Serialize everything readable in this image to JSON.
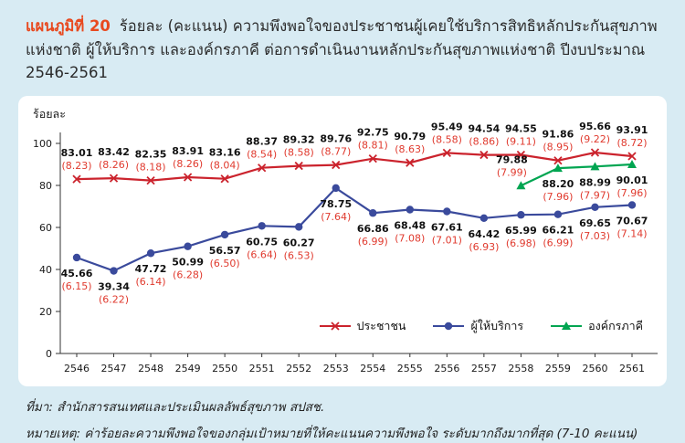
{
  "page": {
    "title_label": "แผนภูมิที่ 20",
    "title_text": "ร้อยละ (คะแนน) ความพึงพอใจของประชาชนผู้เคยใช้บริการสิทธิหลักประกันสุขภาพแห่งชาติ ผู้ให้บริการ และองค์กรภาคี ต่อการดำเนินงานหลักประกันสุขภาพแห่งชาติ ปีงบประมาณ 2546-2561",
    "source_line": "ที่มา: สำนักสารสนเทศและประเมินผลลัพธ์สุขภาพ สปสช.",
    "note_line": "หมายเหตุ: ค่าร้อยละความพึงพอใจของกลุ่มเป้าหมายที่ให้คะแนนความพึงพอใจ ระดับมากถึงมากที่สุด (7-10 คะแนน)"
  },
  "colors": {
    "background": "#d8ebf3",
    "card": "#ffffff",
    "title_accent": "#e8491f",
    "score_label": "#e03a2e",
    "axis": "#333333"
  },
  "chart_data": {
    "type": "line",
    "title": "",
    "xlabel": "",
    "ylabel": "ร้อยละ",
    "ylim": [
      0,
      100
    ],
    "yticks": [
      0,
      20,
      40,
      60,
      80,
      100
    ],
    "grid": false,
    "legend_position": "inside-bottom-right",
    "categories": [
      "2546",
      "2547",
      "2548",
      "2549",
      "2550",
      "2551",
      "2552",
      "2553",
      "2554",
      "2555",
      "2556",
      "2557",
      "2558",
      "2559",
      "2560",
      "2561"
    ],
    "series": [
      {
        "name": "ประชาชน",
        "color": "#cb232d",
        "marker": "x",
        "start_index": 0,
        "values": [
          "83.01",
          "83.42",
          "82.35",
          "83.91",
          "83.16",
          "88.37",
          "89.32",
          "89.76",
          "92.75",
          "90.79",
          "95.49",
          "94.54",
          "94.55",
          "91.86",
          "95.66",
          "93.91"
        ],
        "scores": [
          "8.23",
          "8.26",
          "8.18",
          "8.26",
          "8.04",
          "8.54",
          "8.58",
          "8.77",
          "8.81",
          "8.63",
          "8.58",
          "8.86",
          "9.11",
          "8.95",
          "9.22",
          "8.72"
        ]
      },
      {
        "name": "ผู้ให้บริการ",
        "color": "#3a4a9c",
        "marker": "circle",
        "start_index": 0,
        "values": [
          "45.66",
          "39.34",
          "47.72",
          "50.99",
          "56.57",
          "60.75",
          "60.27",
          "78.75",
          "66.86",
          "68.48",
          "67.61",
          "64.42",
          "65.99",
          "66.21",
          "69.65",
          "70.67"
        ],
        "scores": [
          "6.15",
          "6.22",
          "6.14",
          "6.28",
          "6.50",
          "6.64",
          "6.53",
          "7.64",
          "6.99",
          "7.08",
          "7.01",
          "6.93",
          "6.98",
          "6.99",
          "7.03",
          "7.14"
        ]
      },
      {
        "name": "องค์กรภาคี",
        "color": "#00a551",
        "marker": "triangle",
        "start_index": 12,
        "values": [
          "79.88",
          "88.20",
          "88.99",
          "90.01"
        ],
        "scores": [
          "7.99",
          "7.96",
          "7.97",
          "7.96"
        ]
      }
    ]
  }
}
